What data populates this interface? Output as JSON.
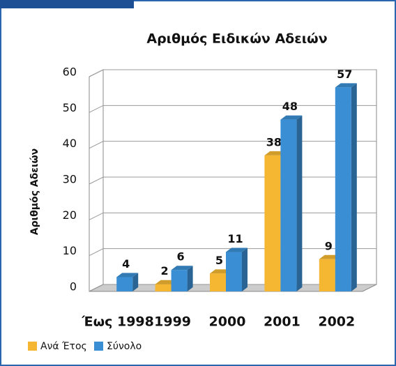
{
  "chart_data": {
    "type": "bar3d",
    "title": "Αριθμός Ειδικών Αδειών",
    "y_label": "Αριθμός Αδειών",
    "categories": [
      "Έως 1998",
      "1999",
      "2000",
      "2001",
      "2002"
    ],
    "series": [
      {
        "name": "Ανά Έτος",
        "color": "#f5b731",
        "values": [
          null,
          2,
          5,
          38,
          9
        ]
      },
      {
        "name": "Σύνολο",
        "color": "#3a8fd4",
        "values": [
          4,
          6,
          11,
          48,
          57
        ]
      }
    ],
    "ylim": [
      0,
      60
    ],
    "yticks": [
      0,
      10,
      20,
      30,
      40,
      50,
      60
    ],
    "grid": true,
    "legend": "bottom"
  }
}
